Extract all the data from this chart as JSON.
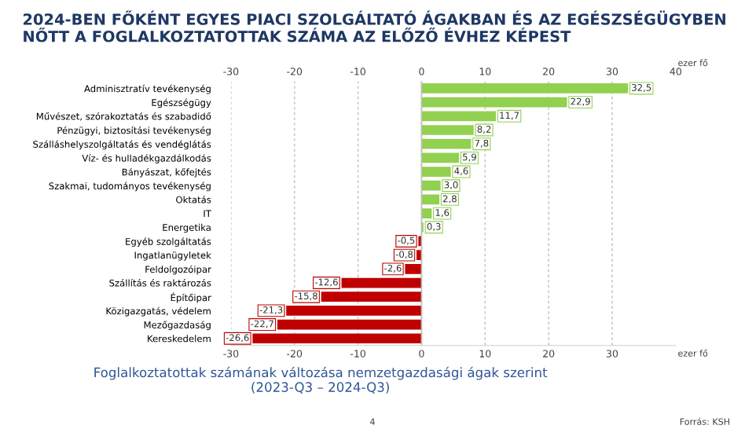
{
  "chart_data": {
    "type": "bar",
    "orientation": "horizontal",
    "title": "2024-BEN FŐKÉNT EGYES PIACI SZOLGÁLTATÓ ÁGAKBAN ÉS AZ EGÉSZSÉGÜGYBEN NŐTT A FOGLALKOZTATOTTAK SZÁMA AZ ELŐZŐ ÉVHEZ KÉPEST",
    "categories": [
      "Adminisztratív tevékenység",
      "Egészségügy",
      "Művészet, szórakoztatás és szabadidő",
      "Pénzügyi, biztosítási tevékenység",
      "Szálláshelyszolgáltatás és vendéglátás",
      "Víz- és hulladékgazdálkodás",
      "Bányászat, kőfejtés",
      "Szakmai, tudományos tevékenység",
      "Oktatás",
      "IT",
      "Energetika",
      "Egyéb szolgáltatás",
      "Ingatlanügyletek",
      "Feldolgozóipar",
      "Szállítás és raktározás",
      "Építőipar",
      "Közigazgatás, védelem",
      "Mezőgazdaság",
      "Kereskedelem"
    ],
    "values": [
      32.5,
      22.9,
      11.7,
      8.2,
      7.8,
      5.9,
      4.6,
      3.0,
      2.8,
      1.6,
      0.3,
      -0.5,
      -0.8,
      -2.6,
      -12.6,
      -15.8,
      -21.3,
      -22.7,
      -26.6
    ],
    "value_labels": [
      "32,5",
      "22,9",
      "11,7",
      "8,2",
      "7,8",
      "5,9",
      "4,6",
      "3,0",
      "2,8",
      "1,6",
      "0,3",
      "-0,5",
      "-0,8",
      "-2,6",
      "-12,6",
      "-15,8",
      "-21,3",
      "-22,7",
      "-26,6"
    ],
    "colors": [
      "#92d050",
      "#92d050",
      "#92d050",
      "#92d050",
      "#92d050",
      "#92d050",
      "#92d050",
      "#92d050",
      "#92d050",
      "#92d050",
      "#92d050",
      "#c00000",
      "#c00000",
      "#c00000",
      "#c00000",
      "#c00000",
      "#c00000",
      "#c00000",
      "#c00000"
    ],
    "xlim": [
      -30,
      40
    ],
    "xticks": [
      -30,
      -20,
      -10,
      0,
      10,
      20,
      30
    ],
    "x2lim": [
      -30,
      40
    ],
    "x2ticks": [
      -30,
      -20,
      -10,
      0,
      10,
      20,
      30,
      40
    ],
    "xlabel": "ezer fő",
    "x2label": "ezer fő",
    "grid": "x",
    "annotations": [
      "Foglalkoztatottak számának változása nemzetgazdasági ágak szerint\n(2023-Q3 – 2024-Q3)",
      "4",
      "Forrás: KSH"
    ]
  }
}
